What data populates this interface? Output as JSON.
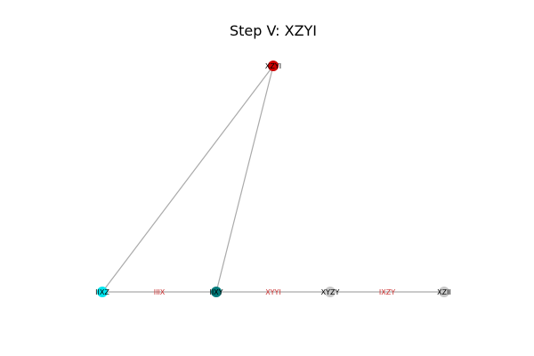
{
  "title": "Step V: XZYI",
  "nodes": [
    {
      "id": "XZYI",
      "label": "XZYI",
      "color": "#cc0000"
    },
    {
      "id": "IIXZ",
      "label": "IIXZ",
      "color": "#00e5ee"
    },
    {
      "id": "IIXY",
      "label": "IIXY",
      "color": "#007b7b"
    },
    {
      "id": "XYZY",
      "label": "XYZY",
      "color": "#c8c8c8"
    },
    {
      "id": "XZII",
      "label": "XZII",
      "color": "#c8c8c8"
    }
  ],
  "edges": [
    {
      "from": "XZYI",
      "to": "IIXZ",
      "label": ""
    },
    {
      "from": "XZYI",
      "to": "IIXY",
      "label": ""
    },
    {
      "from": "IIXZ",
      "to": "IIXY",
      "label": "IIIX"
    },
    {
      "from": "IIXY",
      "to": "XYZY",
      "label": "XYYI"
    },
    {
      "from": "XYZY",
      "to": "XZII",
      "label": "IXZY"
    }
  ],
  "colors": {
    "edge": "#aaaaaa",
    "edge_label": "#cc3333"
  }
}
